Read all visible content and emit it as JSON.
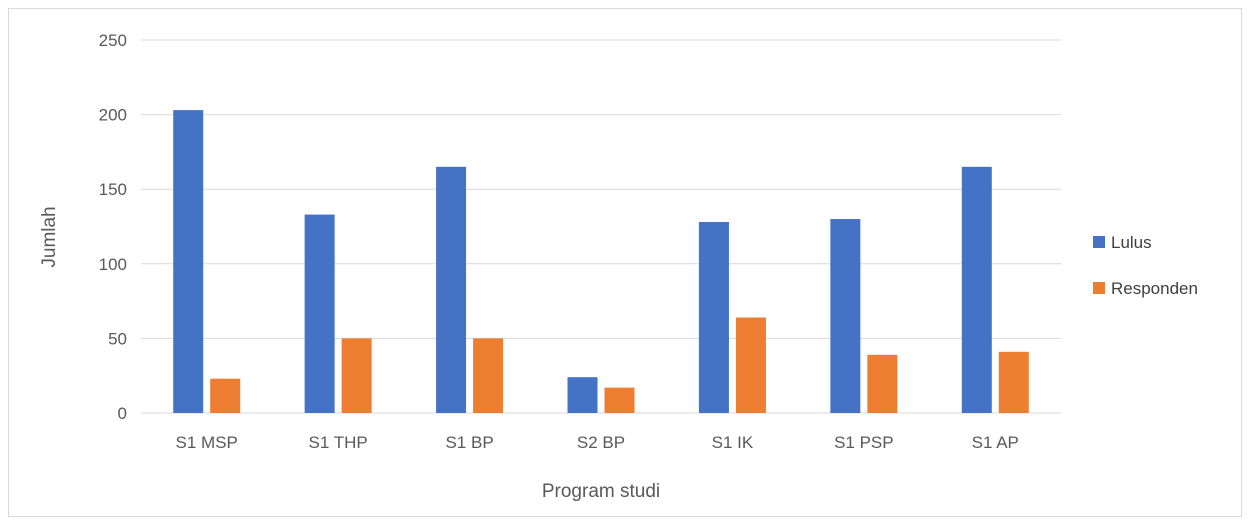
{
  "chart_data": {
    "type": "bar",
    "title": "",
    "xlabel": "Program studi",
    "ylabel": "Jumlah",
    "categories": [
      "S1 MSP",
      "S1 THP",
      "S1 BP",
      "S2 BP",
      "S1 IK",
      "S1 PSP",
      "S1 AP"
    ],
    "series": [
      {
        "name": "Lulus",
        "color": "#4472c4",
        "values": [
          203,
          133,
          165,
          24,
          128,
          130,
          165
        ]
      },
      {
        "name": "Responden",
        "color": "#ed7d31",
        "values": [
          23,
          50,
          50,
          17,
          64,
          39,
          41
        ]
      }
    ],
    "ylim": [
      0,
      250
    ],
    "yticks": [
      0,
      50,
      100,
      150,
      200,
      250
    ],
    "grid": true,
    "legend_position": "right"
  }
}
